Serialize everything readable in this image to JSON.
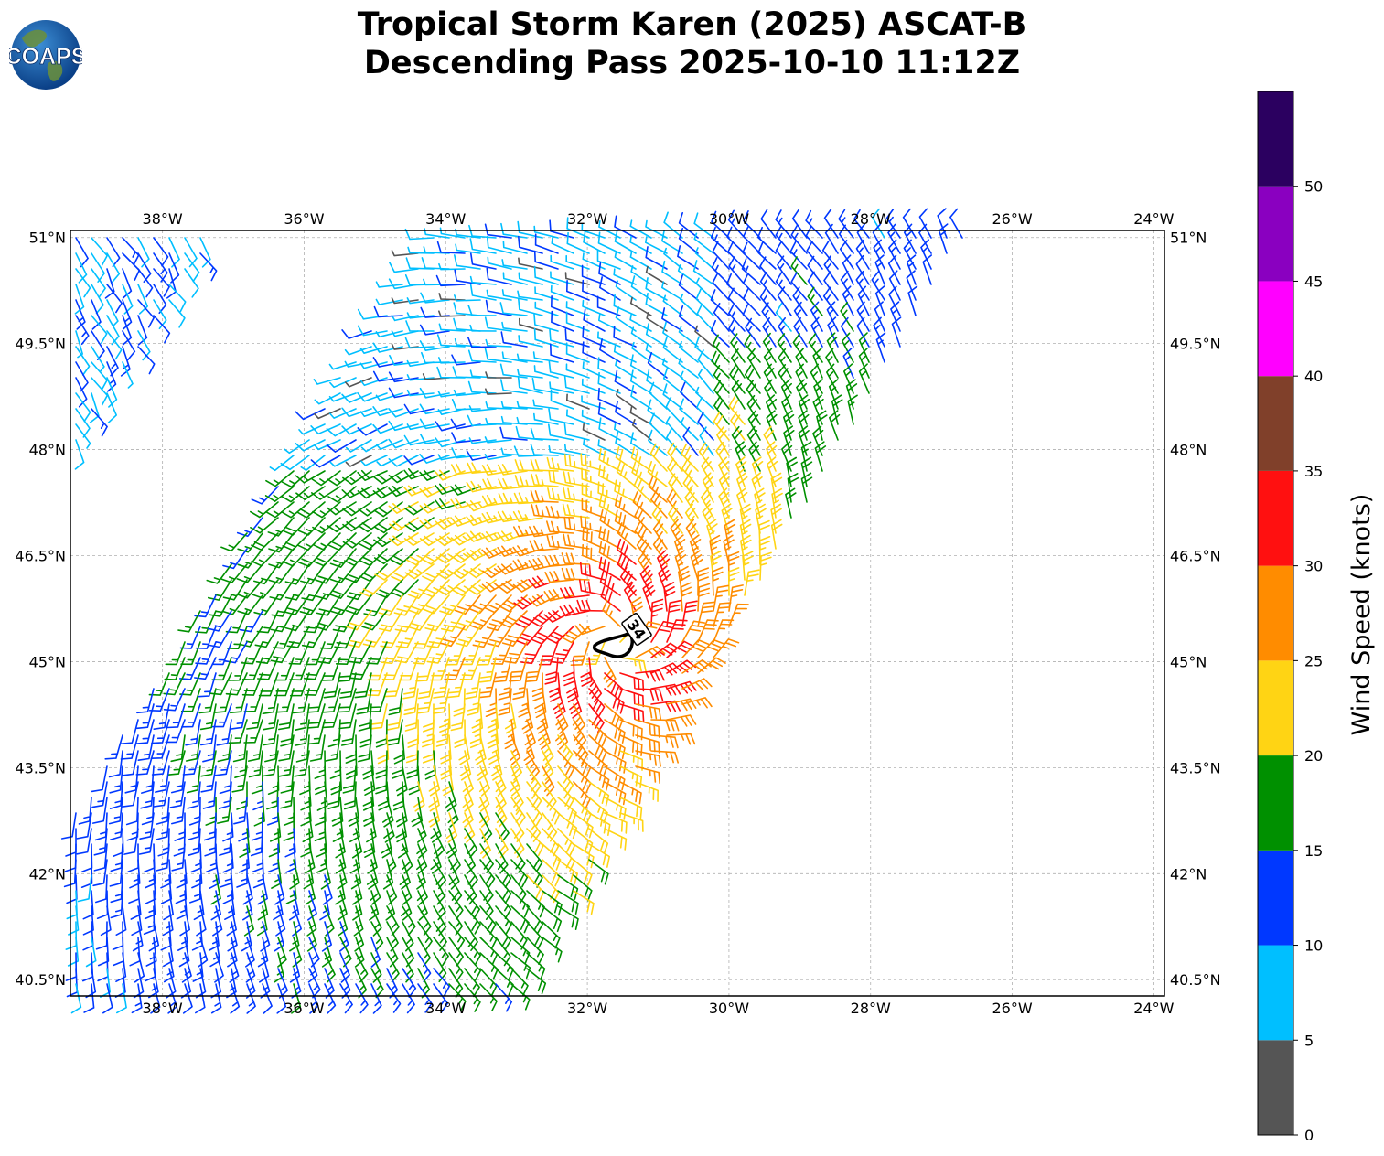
{
  "title": {
    "line1": "Tropical Storm Karen (2025) ASCAT-B",
    "line2": "Descending Pass 2025-10-10 11:12Z"
  },
  "logo": {
    "text": "COAPS",
    "icon": "globe-logo-icon"
  },
  "map": {
    "lon_range": [
      -39.3,
      -23.85
    ],
    "lat_range": [
      40.27,
      51.1
    ],
    "lon_ticks": [
      "38°W",
      "36°W",
      "34°W",
      "32°W",
      "30°W",
      "28°W",
      "26°W",
      "24°W"
    ],
    "lat_ticks": [
      "51°N",
      "49.5°N",
      "48°N",
      "46.5°N",
      "45°N",
      "43.5°N",
      "42°N",
      "40.5°N"
    ],
    "grid": true,
    "contour_label": "34",
    "storm_center": {
      "lon": -31.6,
      "lat": 45.3
    }
  },
  "colorbar": {
    "label": "Wind Speed (knots)",
    "ticks": [
      "0",
      "5",
      "10",
      "15",
      "20",
      "25",
      "30",
      "35",
      "40",
      "45",
      "50"
    ],
    "bins": [
      {
        "min": 0,
        "max": 5,
        "color": "#555555"
      },
      {
        "min": 5,
        "max": 10,
        "color": "#00bfff"
      },
      {
        "min": 10,
        "max": 15,
        "color": "#0038ff"
      },
      {
        "min": 15,
        "max": 20,
        "color": "#009000"
      },
      {
        "min": 20,
        "max": 25,
        "color": "#ffd414"
      },
      {
        "min": 25,
        "max": 30,
        "color": "#ff8c00"
      },
      {
        "min": 30,
        "max": 35,
        "color": "#ff1010"
      },
      {
        "min": 35,
        "max": 40,
        "color": "#80402a"
      },
      {
        "min": 40,
        "max": 45,
        "color": "#ff00ff"
      },
      {
        "min": 45,
        "max": 50,
        "color": "#8a00c0"
      },
      {
        "min": 50,
        "max": 55,
        "color": "#2b0060"
      }
    ]
  }
}
